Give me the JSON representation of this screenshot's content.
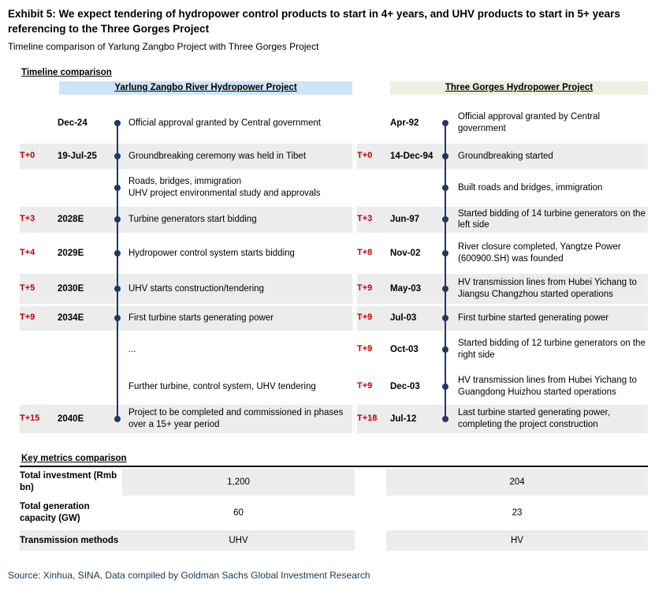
{
  "exhibit": {
    "title": "Exhibit 5: We expect tendering of hydropower control products to start in 4+ years, and UHV products to start in 5+ years referencing to the Three Gorges Project",
    "subtitle": "Timeline comparison of Yarlung Zangbo Project with Three Gorges Project",
    "source": "Source: Xinhua, SINA, Data compiled by Goldman Sachs Global Investment Research"
  },
  "timeline": {
    "section_label": "Timeline comparison",
    "left": {
      "header": "Yarlung Zangbo River Hydropower Project",
      "rows": [
        {
          "t": "",
          "date": "Dec-24",
          "text": "Official approval granted by Central government"
        },
        {
          "t": "T+0",
          "date": "19-Jul-25",
          "text": "Groundbreaking ceremony was held in Tibet"
        },
        {
          "t": "",
          "date": "",
          "text": "Roads, bridges, immigration\nUHV project environmental study and approvals"
        },
        {
          "t": "T+3",
          "date": "2028E",
          "text": "Turbine generators start bidding"
        },
        {
          "t": "T+4",
          "date": "2029E",
          "text": "Hydropower control system starts bidding"
        },
        {
          "t": "T+5",
          "date": "2030E",
          "text": "UHV starts construction/tendering"
        },
        {
          "t": "T+9",
          "date": "2034E",
          "text": "First turbine starts generating power"
        },
        {
          "t": "",
          "date": "",
          "text": "..."
        },
        {
          "t": "",
          "date": "",
          "text": "Further turbine, control system, UHV tendering"
        },
        {
          "t": "T+15",
          "date": "2040E",
          "text": "Project to be completed and commissioned in phases over a 15+ year period"
        }
      ]
    },
    "right": {
      "header": "Three Gorges Hydropower Project",
      "rows": [
        {
          "t": "",
          "date": "Apr-92",
          "text": "Official approval granted by Central government"
        },
        {
          "t": "T+0",
          "date": "14-Dec-94",
          "text": "Groundbreaking started"
        },
        {
          "t": "",
          "date": "",
          "text": "Built roads and bridges, immigration"
        },
        {
          "t": "T+3",
          "date": "Jun-97",
          "text": "Started bidding of 14 turbine generators on the left side"
        },
        {
          "t": "T+8",
          "date": "Nov-02",
          "text": "River closure completed, Yangtze Power (600900.SH) was founded"
        },
        {
          "t": "T+9",
          "date": "May-03",
          "text": "HV transmission lines from Hubei Yichang to Jiangsu Changzhou started operations"
        },
        {
          "t": "T+9",
          "date": "Jul-03",
          "text": "First turbine started generating power"
        },
        {
          "t": "T+9",
          "date": "Oct-03",
          "text": "Started bidding of 12 turbine generators on the right side"
        },
        {
          "t": "T+9",
          "date": "Dec-03",
          "text": "HV transmission lines from Hubei Yichang to Guangdong Huizhou started operations"
        },
        {
          "t": "T+18",
          "date": "Jul-12",
          "text": "Last turbine started generating power, completing the project construction"
        }
      ]
    }
  },
  "metrics": {
    "section_label": "Key metrics comparison",
    "rows": [
      {
        "label": "Total investment (Rmb bn)",
        "left": "1,200",
        "right": "204"
      },
      {
        "label": "Total generation capacity (GW)",
        "left": "60",
        "right": "23"
      },
      {
        "label": "Transmission methods",
        "left": "UHV",
        "right": "HV"
      }
    ]
  },
  "colors": {
    "accent_red": "#C00000",
    "timeline_navy": "#1F3864",
    "left_header_bg": "#CDE4F5",
    "right_header_bg": "#EBF1DE",
    "band_gray": "#ECECEC",
    "source_blue": "#17375E"
  }
}
